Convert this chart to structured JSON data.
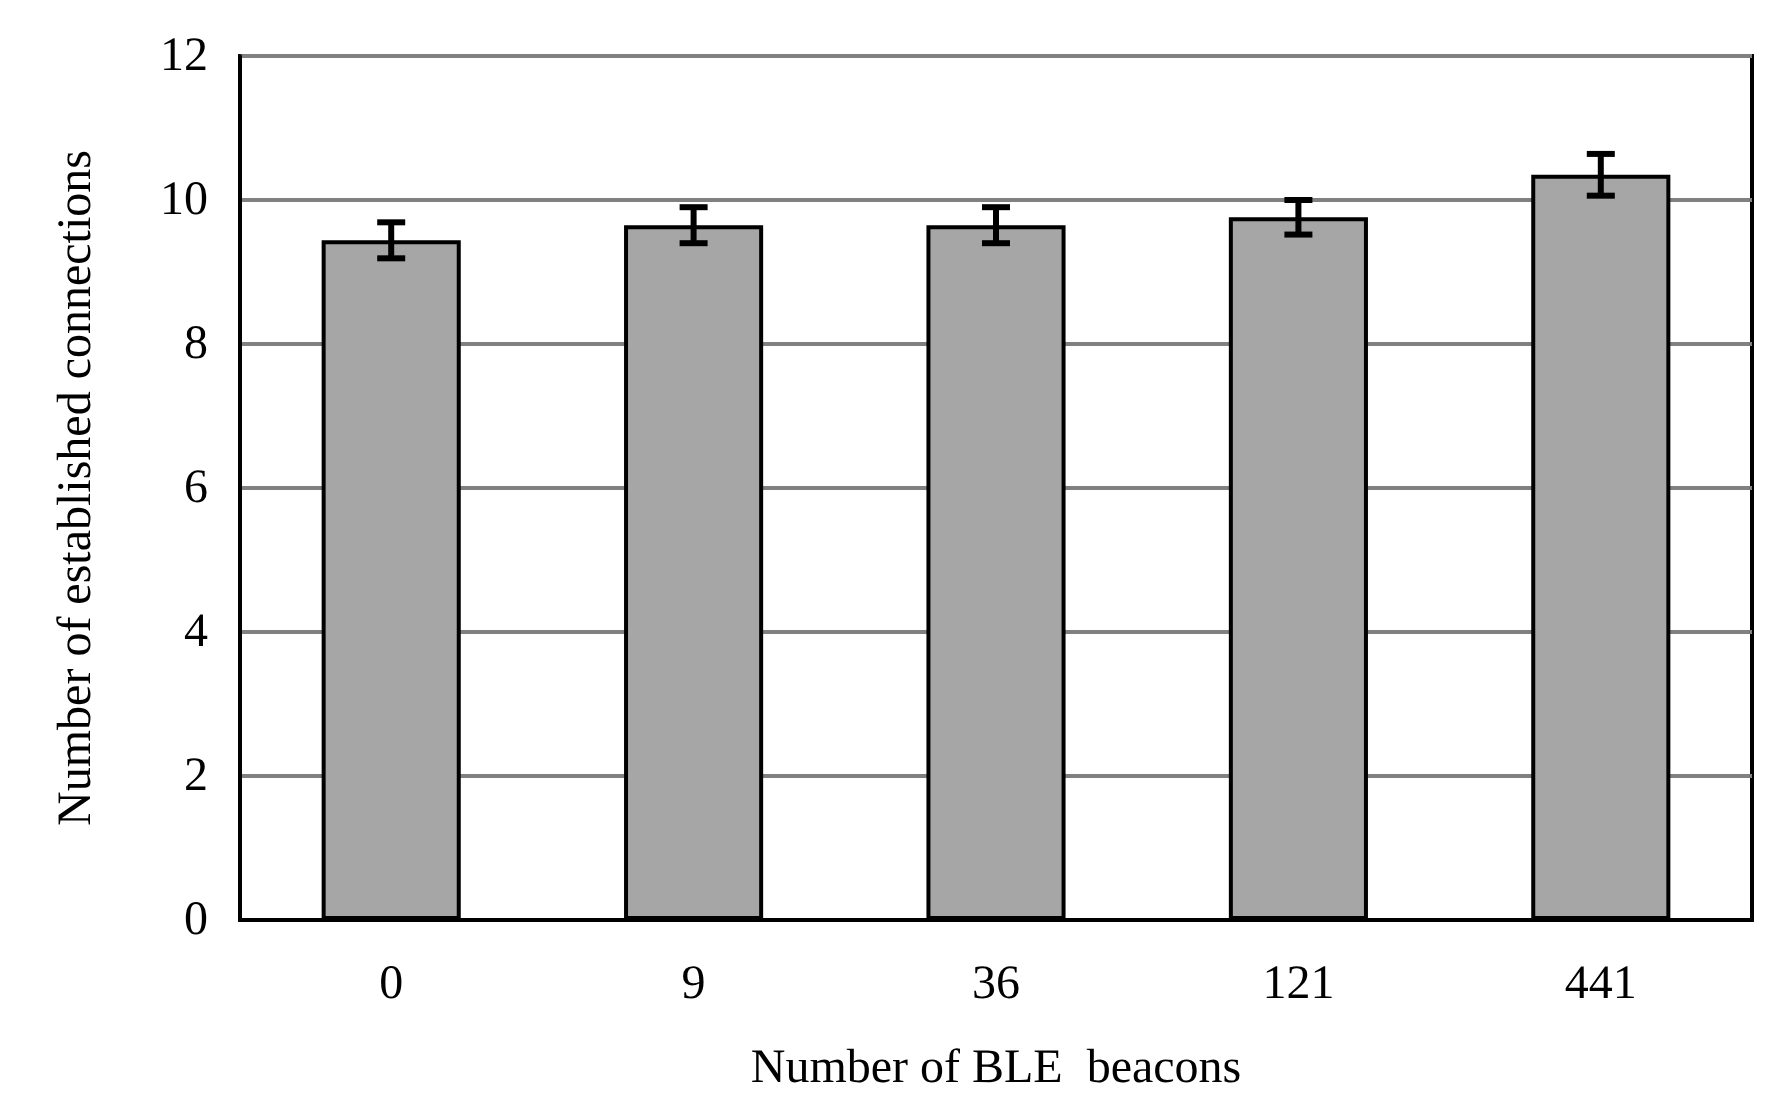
{
  "chart_data": {
    "type": "bar",
    "xlabel": "Number of BLE  beacons",
    "ylabel": "Number of established connections",
    "categories": [
      "0",
      "9",
      "36",
      "121",
      "441"
    ],
    "values": [
      9.44,
      9.65,
      9.65,
      9.76,
      10.35
    ],
    "errors": [
      0.25,
      0.25,
      0.25,
      0.24,
      0.29
    ],
    "color": "#a6a6a6",
    "ylim": [
      0,
      12
    ],
    "yticks": [
      0,
      2,
      4,
      6,
      8,
      10,
      12
    ],
    "grid": "y"
  }
}
